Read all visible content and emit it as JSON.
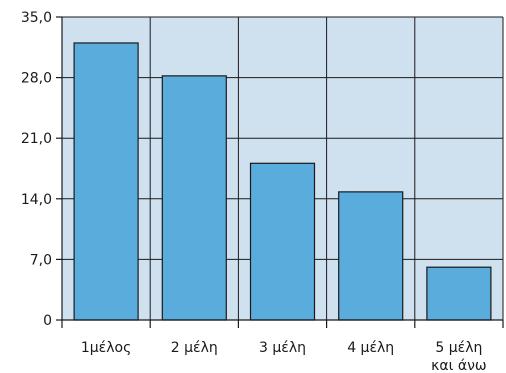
{
  "chart_data": {
    "type": "bar",
    "title": "",
    "xlabel": "",
    "ylabel": "",
    "categories": [
      [
        "1μέλος"
      ],
      [
        "2 μέλη"
      ],
      [
        "3 μέλη"
      ],
      [
        "4 μέλη"
      ],
      [
        "5 μέλη",
        "και άνω"
      ]
    ],
    "values": [
      32.0,
      28.2,
      18.1,
      14.8,
      6.1
    ],
    "ylim": [
      0,
      35
    ],
    "yticks": [
      0,
      7,
      14,
      21,
      28,
      35
    ],
    "ytick_labels": [
      "0",
      "7,0",
      "14,0",
      "21,0",
      "28,0",
      "35,0"
    ],
    "grid": true,
    "colors": {
      "bar_fill": "#5aacdc",
      "bar_stroke": "#1a1a1a",
      "plot_background": "#cfe0ef",
      "grid": "#1a1a1a"
    }
  }
}
